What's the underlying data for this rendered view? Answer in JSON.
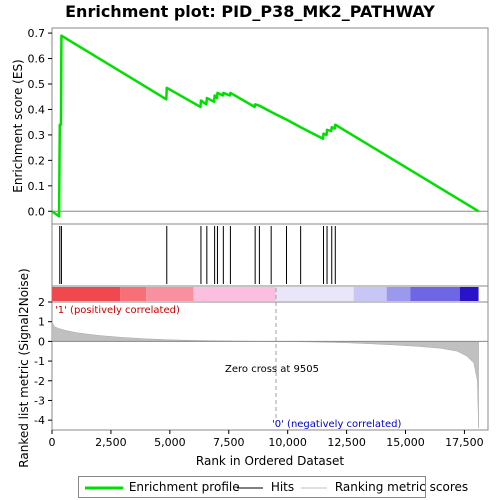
{
  "chart_data": {
    "type": "line",
    "title": "Enrichment plot: PID_P38_MK2_PATHWAY",
    "es_ylabel": "Enrichment score (ES)",
    "metric_ylabel": "Ranked list metric (Signal2Noise)",
    "xlabel": "Rank in Ordered Dataset",
    "xlim": [
      0,
      18500
    ],
    "es_ylim": [
      -0.05,
      0.72
    ],
    "metric_ylim": [
      -4.5,
      2
    ],
    "x_ticks": [
      0,
      2500,
      5000,
      7500,
      10000,
      12500,
      15000,
      17500
    ],
    "x_tick_labels": [
      "0",
      "2,500",
      "5,000",
      "7,500",
      "10,000",
      "12,500",
      "15,000",
      "17,500"
    ],
    "es_ticks": [
      0.0,
      0.1,
      0.2,
      0.3,
      0.4,
      0.5,
      0.6,
      0.7
    ],
    "es_tick_labels": [
      "0.0",
      "0.1",
      "0.2",
      "0.3",
      "0.4",
      "0.5",
      "0.6",
      "0.7"
    ],
    "metric_ticks": [
      2,
      1,
      0,
      -1,
      -2,
      -3,
      -4
    ],
    "metric_tick_labels": [
      "2",
      "1",
      "0",
      "-1",
      "-2",
      "-3",
      "-4"
    ],
    "es_profile": [
      [
        0,
        0.0
      ],
      [
        300,
        -0.02
      ],
      [
        330,
        0.34
      ],
      [
        380,
        0.34
      ],
      [
        400,
        0.69
      ],
      [
        4850,
        0.44
      ],
      [
        4870,
        0.485
      ],
      [
        6300,
        0.41
      ],
      [
        6320,
        0.435
      ],
      [
        6550,
        0.42
      ],
      [
        6570,
        0.445
      ],
      [
        6880,
        0.43
      ],
      [
        6900,
        0.455
      ],
      [
        7000,
        0.445
      ],
      [
        7020,
        0.465
      ],
      [
        7250,
        0.455
      ],
      [
        7270,
        0.465
      ],
      [
        7550,
        0.455
      ],
      [
        7570,
        0.465
      ],
      [
        8600,
        0.41
      ],
      [
        8620,
        0.42
      ],
      [
        8800,
        0.415
      ],
      [
        9300,
        0.39
      ],
      [
        9950,
        0.36
      ],
      [
        10550,
        0.33
      ],
      [
        11500,
        0.285
      ],
      [
        11520,
        0.305
      ],
      [
        11650,
        0.3
      ],
      [
        11670,
        0.32
      ],
      [
        11850,
        0.315
      ],
      [
        11870,
        0.33
      ],
      [
        12000,
        0.325
      ],
      [
        12020,
        0.34
      ],
      [
        18100,
        0.0
      ]
    ],
    "hits": [
      330,
      400,
      4870,
      6320,
      6570,
      6900,
      7020,
      7270,
      7570,
      8620,
      8800,
      9300,
      9950,
      10550,
      11520,
      11670,
      11870,
      12020
    ],
    "metric_curve": [
      [
        0,
        1.0
      ],
      [
        100,
        0.75
      ],
      [
        300,
        0.65
      ],
      [
        600,
        0.55
      ],
      [
        1000,
        0.45
      ],
      [
        1500,
        0.37
      ],
      [
        2000,
        0.3
      ],
      [
        3000,
        0.2
      ],
      [
        4000,
        0.13
      ],
      [
        5000,
        0.08
      ],
      [
        6000,
        0.05
      ],
      [
        7000,
        0.03
      ],
      [
        8000,
        0.015
      ],
      [
        9000,
        0.005
      ],
      [
        9505,
        0.0
      ],
      [
        10500,
        -0.02
      ],
      [
        11500,
        -0.04
      ],
      [
        12500,
        -0.07
      ],
      [
        13500,
        -0.12
      ],
      [
        14500,
        -0.18
      ],
      [
        15500,
        -0.25
      ],
      [
        16500,
        -0.35
      ],
      [
        17200,
        -0.5
      ],
      [
        17600,
        -0.75
      ],
      [
        17900,
        -1.1
      ],
      [
        18050,
        -2.0
      ],
      [
        18100,
        -4.4
      ]
    ],
    "color_band": [
      {
        "from": 0,
        "to": 2900,
        "color": "#f0484f"
      },
      {
        "from": 2900,
        "to": 4000,
        "color": "#f77078"
      },
      {
        "from": 4000,
        "to": 6000,
        "color": "#f990a0"
      },
      {
        "from": 6000,
        "to": 9500,
        "color": "#fcbfdf"
      },
      {
        "from": 9500,
        "to": 12800,
        "color": "#e8e6f8"
      },
      {
        "from": 12800,
        "to": 14200,
        "color": "#c8c6f4"
      },
      {
        "from": 14200,
        "to": 15200,
        "color": "#9b98ee"
      },
      {
        "from": 15200,
        "to": 17300,
        "color": "#6e66e4"
      },
      {
        "from": 17300,
        "to": 18100,
        "color": "#2a12c8"
      }
    ],
    "zero_cross": 9505,
    "zero_cross_label": "Zero cross at 9505",
    "pos_label": "'1' (positively correlated)",
    "neg_label": "'0' (negatively correlated)",
    "colors": {
      "profile": "#00e000",
      "hits": "#000000",
      "metric_fill": "#c0c0c0",
      "pos_label": "#cc0000",
      "neg_label": "#0000cc",
      "zero_line": "#a0a0a0"
    }
  },
  "legend": {
    "profile_label": "Enrichment profile",
    "hits_label": "Hits",
    "metric_label": "Ranking metric scores"
  }
}
